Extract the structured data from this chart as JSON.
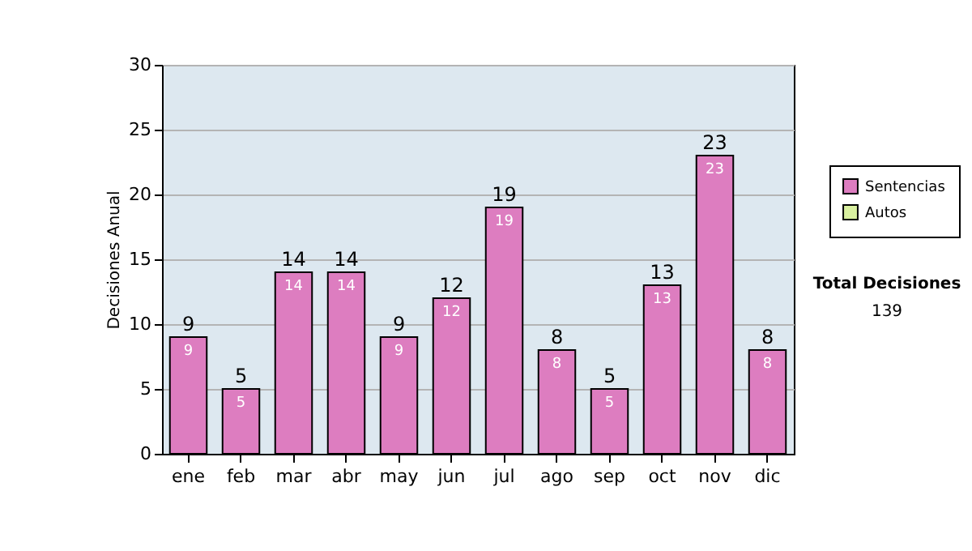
{
  "chart_data": {
    "type": "bar",
    "ylabel": "Decisiones Anual",
    "categories": [
      "ene",
      "feb",
      "mar",
      "abr",
      "may",
      "jun",
      "jul",
      "ago",
      "sep",
      "oct",
      "nov",
      "dic"
    ],
    "series": [
      {
        "name": "Sentencias",
        "color": "#dd7dc0",
        "values": [
          9,
          5,
          14,
          14,
          9,
          12,
          19,
          8,
          5,
          13,
          23,
          8
        ]
      },
      {
        "name": "Autos",
        "color": "#d9f0a0",
        "values": [
          null,
          null,
          null,
          null,
          null,
          null,
          null,
          null,
          null,
          null,
          null,
          null
        ]
      }
    ],
    "data_labels": true,
    "totals": [
      "9",
      "5",
      "14",
      "14",
      "9",
      "12",
      "19",
      "8",
      "5",
      "13",
      "23",
      "8"
    ],
    "ylim": [
      0,
      30
    ],
    "yticks": [
      0,
      5,
      10,
      15,
      20,
      25,
      30
    ],
    "grid": "y",
    "legend": "right",
    "annotations": [
      "Total Decisiones",
      "139"
    ]
  }
}
